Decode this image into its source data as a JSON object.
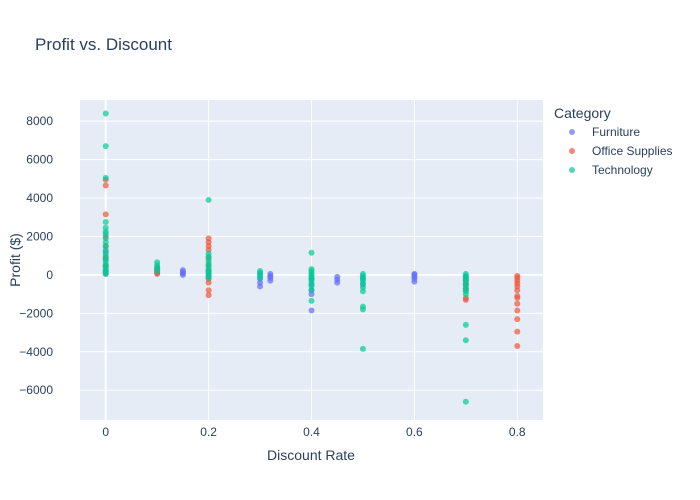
{
  "chart_data": {
    "type": "scatter",
    "title": "Profit vs. Discount",
    "xlabel": "Discount Rate",
    "ylabel": "Profit ($)",
    "xlim": [
      -0.05,
      0.85
    ],
    "ylim": [
      -7550,
      9100
    ],
    "xticks": [
      0,
      0.2,
      0.4,
      0.6,
      0.8
    ],
    "xtick_labels": [
      "0",
      "0.2",
      "0.4",
      "0.6",
      "0.8"
    ],
    "yticks": [
      -6000,
      -4000,
      -2000,
      0,
      2000,
      4000,
      6000,
      8000
    ],
    "ytick_labels": [
      "−6000",
      "−4000",
      "−2000",
      "0",
      "2000",
      "4000",
      "6000",
      "8000"
    ],
    "grid": true,
    "legend_title": "Category",
    "legend_position": "right",
    "series": [
      {
        "name": "Furniture",
        "color": "#636efa",
        "points": [
          [
            0,
            50
          ],
          [
            0,
            200
          ],
          [
            0,
            450
          ],
          [
            0,
            800
          ],
          [
            0,
            1200
          ],
          [
            0.1,
            100
          ],
          [
            0.1,
            250
          ],
          [
            0.1,
            400
          ],
          [
            0.15,
            0
          ],
          [
            0.15,
            80
          ],
          [
            0.15,
            150
          ],
          [
            0.15,
            250
          ],
          [
            0.2,
            -100
          ],
          [
            0.2,
            50
          ],
          [
            0.2,
            200
          ],
          [
            0.3,
            -200
          ],
          [
            0.3,
            -400
          ],
          [
            0.3,
            -600
          ],
          [
            0.3,
            50
          ],
          [
            0.32,
            -150
          ],
          [
            0.32,
            -300
          ],
          [
            0.32,
            -50
          ],
          [
            0.32,
            50
          ],
          [
            0.4,
            -200
          ],
          [
            0.4,
            -500
          ],
          [
            0.4,
            -800
          ],
          [
            0.4,
            -1000
          ],
          [
            0.4,
            -1850
          ],
          [
            0.45,
            -100
          ],
          [
            0.45,
            -250
          ],
          [
            0.45,
            -400
          ],
          [
            0.5,
            -200
          ],
          [
            0.5,
            -500
          ],
          [
            0.6,
            -100
          ],
          [
            0.6,
            -200
          ],
          [
            0.6,
            -350
          ],
          [
            0.6,
            0
          ],
          [
            0.6,
            50
          ],
          [
            0.7,
            -100
          ],
          [
            0.7,
            -300
          ],
          [
            0.7,
            -500
          ],
          [
            0.7,
            -700
          ]
        ]
      },
      {
        "name": "Office Supplies",
        "color": "#ef553b",
        "points": [
          [
            0,
            4650
          ],
          [
            0,
            4950
          ],
          [
            0,
            3150
          ],
          [
            0,
            2000
          ],
          [
            0,
            1500
          ],
          [
            0,
            900
          ],
          [
            0,
            500
          ],
          [
            0,
            150
          ],
          [
            0.1,
            50
          ],
          [
            0.1,
            150
          ],
          [
            0.1,
            300
          ],
          [
            0.2,
            1900
          ],
          [
            0.2,
            1700
          ],
          [
            0.2,
            1500
          ],
          [
            0.2,
            1300
          ],
          [
            0.2,
            900
          ],
          [
            0.2,
            500
          ],
          [
            0.2,
            200
          ],
          [
            0.2,
            -200
          ],
          [
            0.2,
            -400
          ],
          [
            0.2,
            -800
          ],
          [
            0.2,
            -1050
          ],
          [
            0.7,
            -250
          ],
          [
            0.7,
            -500
          ],
          [
            0.7,
            -800
          ],
          [
            0.7,
            -1200
          ],
          [
            0.7,
            -1300
          ],
          [
            0.8,
            -50
          ],
          [
            0.8,
            -150
          ],
          [
            0.8,
            -300
          ],
          [
            0.8,
            -450
          ],
          [
            0.8,
            -600
          ],
          [
            0.8,
            -800
          ],
          [
            0.8,
            -1100
          ],
          [
            0.8,
            -1200
          ],
          [
            0.8,
            -1500
          ],
          [
            0.8,
            -1850
          ],
          [
            0.8,
            -2300
          ],
          [
            0.8,
            -2950
          ],
          [
            0.8,
            -3700
          ]
        ]
      },
      {
        "name": "Technology",
        "color": "#00cc96",
        "points": [
          [
            0,
            8400
          ],
          [
            0,
            6700
          ],
          [
            0,
            5050
          ],
          [
            0,
            2750
          ],
          [
            0,
            2450
          ],
          [
            0,
            2250
          ],
          [
            0,
            2150
          ],
          [
            0,
            1900
          ],
          [
            0,
            1700
          ],
          [
            0,
            1500
          ],
          [
            0,
            1300
          ],
          [
            0,
            1100
          ],
          [
            0,
            950
          ],
          [
            0,
            800
          ],
          [
            0,
            650
          ],
          [
            0,
            500
          ],
          [
            0,
            350
          ],
          [
            0,
            250
          ],
          [
            0,
            150
          ],
          [
            0,
            50
          ],
          [
            0.1,
            650
          ],
          [
            0.1,
            500
          ],
          [
            0.1,
            350
          ],
          [
            0.1,
            200
          ],
          [
            0.2,
            3900
          ],
          [
            0.2,
            1100
          ],
          [
            0.2,
            950
          ],
          [
            0.2,
            800
          ],
          [
            0.2,
            650
          ],
          [
            0.2,
            500
          ],
          [
            0.2,
            350
          ],
          [
            0.2,
            250
          ],
          [
            0.2,
            150
          ],
          [
            0.2,
            50
          ],
          [
            0.2,
            -50
          ],
          [
            0.2,
            -150
          ],
          [
            0.3,
            200
          ],
          [
            0.3,
            100
          ],
          [
            0.3,
            -50
          ],
          [
            0.3,
            -150
          ],
          [
            0.4,
            1150
          ],
          [
            0.4,
            300
          ],
          [
            0.4,
            200
          ],
          [
            0.4,
            100
          ],
          [
            0.4,
            0
          ],
          [
            0.4,
            -100
          ],
          [
            0.4,
            -200
          ],
          [
            0.4,
            -300
          ],
          [
            0.4,
            -450
          ],
          [
            0.4,
            -600
          ],
          [
            0.4,
            -800
          ],
          [
            0.4,
            -1350
          ],
          [
            0.5,
            50
          ],
          [
            0.5,
            -50
          ],
          [
            0.5,
            -150
          ],
          [
            0.5,
            -300
          ],
          [
            0.5,
            -450
          ],
          [
            0.5,
            -650
          ],
          [
            0.5,
            -850
          ],
          [
            0.5,
            -1650
          ],
          [
            0.5,
            -1800
          ],
          [
            0.5,
            -3850
          ],
          [
            0.7,
            50
          ],
          [
            0.7,
            -50
          ],
          [
            0.7,
            -150
          ],
          [
            0.7,
            -250
          ],
          [
            0.7,
            -400
          ],
          [
            0.7,
            -550
          ],
          [
            0.7,
            -700
          ],
          [
            0.7,
            -850
          ],
          [
            0.7,
            -1000
          ],
          [
            0.7,
            -2600
          ],
          [
            0.7,
            -3400
          ],
          [
            0.7,
            -6600
          ]
        ]
      }
    ]
  }
}
